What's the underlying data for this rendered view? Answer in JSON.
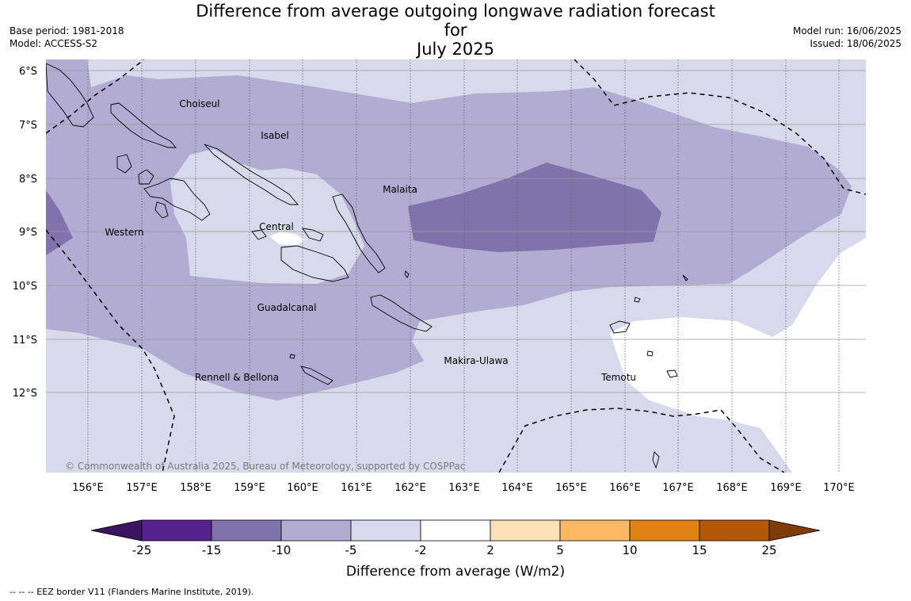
{
  "title_line1": "Difference from average outgoing longwave radiation forecast for",
  "title_line2": "July 2025",
  "base_period": "Base period: 1981-2018",
  "model": "Model: ACCESS-S2",
  "model_run": "Model run: 16/06/2025",
  "issued": "Issued: 18/06/2025",
  "lat_labels": [
    "6°S",
    "7°S",
    "8°S",
    "9°S",
    "10°S",
    "11°S",
    "12°S"
  ],
  "lon_labels": [
    "156°E",
    "157°E",
    "158°E",
    "159°E",
    "160°E",
    "161°E",
    "162°E",
    "163°E",
    "164°E",
    "165°E",
    "166°E",
    "167°E",
    "168°E",
    "169°E",
    "170°E"
  ],
  "places": {
    "choiseul": "Choiseul",
    "isabel": "Isabel",
    "malaita": "Malaita",
    "western": "Western",
    "central": "Central",
    "guadalcanal": "Guadalcanal",
    "makira": "Makira-Ulawa",
    "temotu": "Temotu",
    "rennell": "Rennell & Bellona"
  },
  "copyright": "© Commonwealth of Australia 2025, Bureau of Meteorology, supported by COSPPac",
  "colorbar": {
    "label": "Difference from average (W/m2)",
    "ticks": [
      "-25",
      "-15",
      "-10",
      "-5",
      "-2",
      "2",
      "5",
      "10",
      "15",
      "25"
    ],
    "colors": {
      "below_min": "#3b1360",
      "c1": "#57228b",
      "c2": "#8073ac",
      "c3": "#b2abd2",
      "c4": "#d8daeb",
      "c5": "#ffffff",
      "c6": "#fee0b6",
      "c7": "#fdb863",
      "c8": "#e08214",
      "c9": "#b35806",
      "above_max": "#7f3b08"
    }
  },
  "footnote": "--  --  -- EEZ border V11 (Flanders Marine Institute, 2019)."
}
